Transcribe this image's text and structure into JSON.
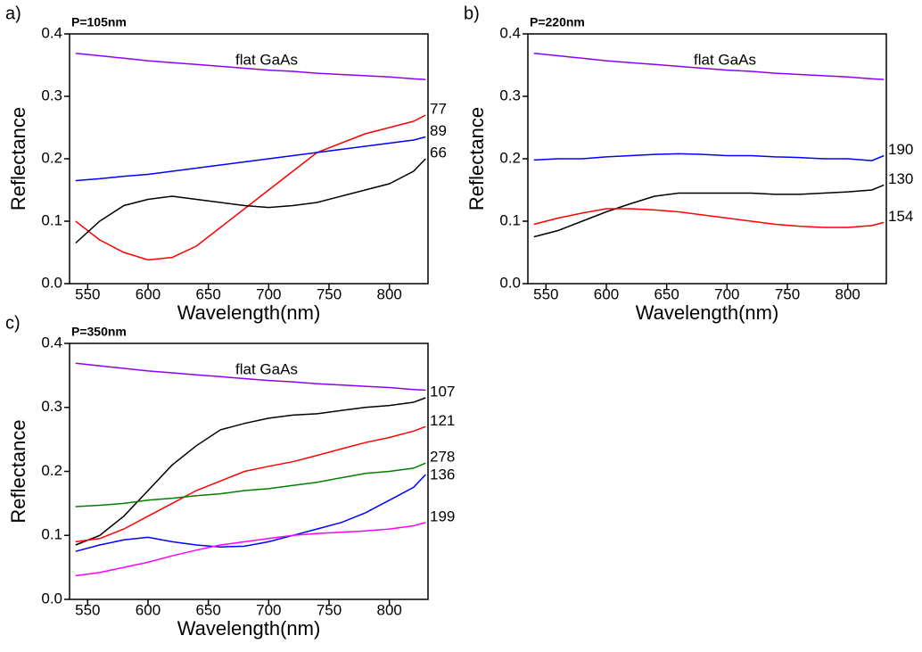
{
  "chart_data": [
    {
      "type": "line",
      "title": "a)",
      "subtitle": "P=105nm",
      "x_label": "Wavelength(nm)",
      "y_label": "Reflectance",
      "x": [
        540,
        560,
        580,
        600,
        620,
        640,
        660,
        680,
        700,
        720,
        740,
        760,
        780,
        800,
        820,
        830
      ],
      "xlim": [
        535,
        832
      ],
      "xticks": [
        550,
        600,
        650,
        700,
        750,
        800
      ],
      "ylim": [
        0,
        0.4
      ],
      "yticks": [
        {
          "value": 0,
          "label": "0.0"
        },
        0.1,
        0.2,
        0.3,
        0.4
      ],
      "series": [
        {
          "name": "flat GaAs",
          "color": "#8b00ff",
          "values": [
            0.369,
            0.365,
            0.361,
            0.357,
            0.354,
            0.351,
            0.348,
            0.345,
            0.342,
            0.34,
            0.337,
            0.335,
            0.333,
            0.331,
            0.328,
            0.327
          ]
        },
        {
          "name": "77",
          "color": "#ff0000",
          "values": [
            0.1,
            0.07,
            0.05,
            0.038,
            0.042,
            0.06,
            0.09,
            0.12,
            0.15,
            0.18,
            0.21,
            0.225,
            0.24,
            0.25,
            0.26,
            0.27
          ]
        },
        {
          "name": "89",
          "color": "#0000ff",
          "values": [
            0.165,
            0.168,
            0.172,
            0.175,
            0.18,
            0.185,
            0.19,
            0.195,
            0.2,
            0.205,
            0.21,
            0.215,
            0.22,
            0.225,
            0.23,
            0.235
          ]
        },
        {
          "name": "66",
          "color": "#000000",
          "values": [
            0.065,
            0.1,
            0.125,
            0.135,
            0.14,
            0.135,
            0.13,
            0.125,
            0.122,
            0.125,
            0.13,
            0.14,
            0.15,
            0.16,
            0.18,
            0.2
          ]
        }
      ]
    },
    {
      "type": "line",
      "title": "b)",
      "subtitle": "P=220nm",
      "x_label": "Wavelength(nm)",
      "y_label": "Reflectance",
      "x": [
        540,
        560,
        580,
        600,
        620,
        640,
        660,
        680,
        700,
        720,
        740,
        760,
        780,
        800,
        820,
        830
      ],
      "xlim": [
        535,
        832
      ],
      "xticks": [
        550,
        600,
        650,
        700,
        750,
        800
      ],
      "ylim": [
        0,
        0.4
      ],
      "yticks": [
        {
          "value": 0,
          "label": "0.0"
        },
        0.1,
        0.2,
        0.3,
        0.4
      ],
      "series": [
        {
          "name": "flat GaAs",
          "color": "#8b00ff",
          "values": [
            0.369,
            0.365,
            0.361,
            0.357,
            0.354,
            0.351,
            0.348,
            0.345,
            0.342,
            0.34,
            0.337,
            0.335,
            0.333,
            0.331,
            0.328,
            0.327
          ]
        },
        {
          "name": "190",
          "color": "#0000ff",
          "values": [
            0.198,
            0.2,
            0.2,
            0.203,
            0.205,
            0.207,
            0.208,
            0.207,
            0.205,
            0.205,
            0.203,
            0.202,
            0.2,
            0.2,
            0.197,
            0.205
          ]
        },
        {
          "name": "130",
          "color": "#000000",
          "values": [
            0.075,
            0.085,
            0.1,
            0.115,
            0.128,
            0.14,
            0.145,
            0.145,
            0.145,
            0.145,
            0.143,
            0.143,
            0.145,
            0.147,
            0.15,
            0.158
          ]
        },
        {
          "name": "154",
          "color": "#ff0000",
          "values": [
            0.095,
            0.105,
            0.113,
            0.12,
            0.12,
            0.118,
            0.115,
            0.11,
            0.105,
            0.1,
            0.095,
            0.092,
            0.09,
            0.09,
            0.093,
            0.098
          ]
        }
      ]
    },
    {
      "type": "line",
      "title": "c)",
      "subtitle": "P=350nm",
      "x_label": "Wavelength(nm)",
      "y_label": "Reflectance",
      "x": [
        540,
        560,
        580,
        600,
        620,
        640,
        660,
        680,
        700,
        720,
        740,
        760,
        780,
        800,
        820,
        830
      ],
      "xlim": [
        535,
        832
      ],
      "xticks": [
        550,
        600,
        650,
        700,
        750,
        800
      ],
      "ylim": [
        0,
        0.4
      ],
      "yticks": [
        {
          "value": 0,
          "label": "0.0"
        },
        0.1,
        0.2,
        0.3,
        0.4
      ],
      "series": [
        {
          "name": "flat GaAs",
          "color": "#8b00ff",
          "values": [
            0.369,
            0.365,
            0.361,
            0.357,
            0.354,
            0.351,
            0.348,
            0.345,
            0.342,
            0.34,
            0.337,
            0.335,
            0.333,
            0.331,
            0.328,
            0.327
          ]
        },
        {
          "name": "107",
          "color": "#000000",
          "values": [
            0.085,
            0.1,
            0.13,
            0.17,
            0.21,
            0.24,
            0.265,
            0.275,
            0.283,
            0.288,
            0.29,
            0.295,
            0.3,
            0.303,
            0.308,
            0.315
          ]
        },
        {
          "name": "121",
          "color": "#ff0000",
          "values": [
            0.09,
            0.095,
            0.11,
            0.13,
            0.15,
            0.17,
            0.185,
            0.2,
            0.208,
            0.215,
            0.225,
            0.235,
            0.245,
            0.253,
            0.263,
            0.27
          ]
        },
        {
          "name": "278",
          "color": "#007f00",
          "values": [
            0.145,
            0.147,
            0.15,
            0.155,
            0.158,
            0.162,
            0.165,
            0.17,
            0.173,
            0.178,
            0.183,
            0.19,
            0.197,
            0.2,
            0.205,
            0.213
          ]
        },
        {
          "name": "136",
          "color": "#0000ff",
          "values": [
            0.075,
            0.085,
            0.093,
            0.097,
            0.09,
            0.085,
            0.082,
            0.083,
            0.09,
            0.1,
            0.11,
            0.12,
            0.135,
            0.155,
            0.175,
            0.195
          ]
        },
        {
          "name": "199",
          "color": "#ff00ff",
          "values": [
            0.037,
            0.042,
            0.05,
            0.058,
            0.068,
            0.077,
            0.085,
            0.09,
            0.095,
            0.1,
            0.103,
            0.105,
            0.107,
            0.11,
            0.115,
            0.12
          ]
        }
      ]
    }
  ]
}
